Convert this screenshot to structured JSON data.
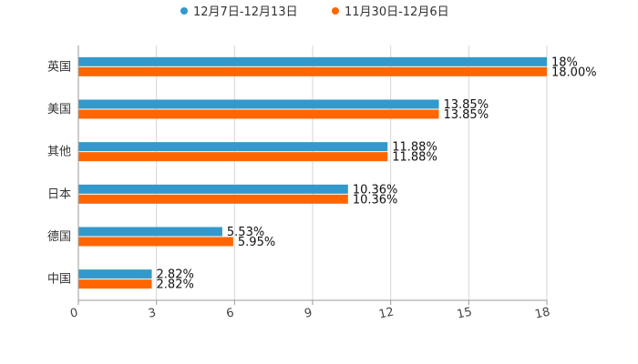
{
  "chart_data": {
    "type": "bar",
    "orientation": "horizontal",
    "title": "",
    "xlabel": "",
    "ylabel": "",
    "categories": [
      "英国",
      "美国",
      "其他",
      "日本",
      "德国",
      "中国"
    ],
    "series": [
      {
        "name": "12月7日-12月13日",
        "color": "#3399cc",
        "values": [
          18,
          13.85,
          11.88,
          10.36,
          5.53,
          2.82
        ],
        "labels": [
          "18%",
          "13.85%",
          "11.88%",
          "10.36%",
          "5.53%",
          "2.82%"
        ]
      },
      {
        "name": "11月30日-12月6日",
        "color": "#ff6600",
        "values": [
          18.0,
          13.85,
          11.88,
          10.36,
          5.95,
          2.82
        ],
        "labels": [
          "18.00%",
          "13.85%",
          "11.88%",
          "10.36%",
          "5.95%",
          "2.82%"
        ]
      }
    ],
    "xlim": [
      0,
      18
    ],
    "xticks": [
      0,
      3,
      6,
      9,
      12,
      15,
      18
    ],
    "xtick_labels": [
      "0",
      "3",
      "6",
      "9",
      "12",
      "15",
      "18"
    ],
    "grid": true,
    "legend_position": "top-center"
  }
}
